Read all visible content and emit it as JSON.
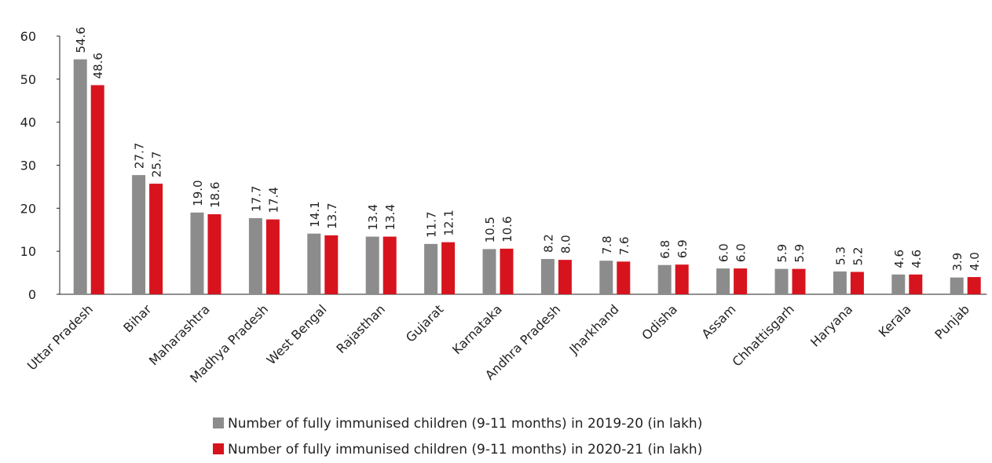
{
  "chart_data": {
    "type": "bar",
    "categories": [
      "Uttar Pradesh",
      "Bihar",
      "Maharashtra",
      "Madhya Pradesh",
      "West Bengal",
      "Rajasthan",
      "Gujarat",
      "Karnataka",
      "Andhra Pradesh",
      "Jharkhand",
      "Odisha",
      "Assam",
      "Chhattisgarh",
      "Haryana",
      "Kerala",
      "Punjab"
    ],
    "series": [
      {
        "name": "Number of fully immunised children (9-11 months) in 2019-20 (in lakh)",
        "color": "#8c8c8c",
        "values": [
          54.6,
          27.7,
          19.0,
          17.7,
          14.1,
          13.4,
          11.7,
          10.5,
          8.2,
          7.8,
          6.8,
          6.0,
          5.9,
          5.3,
          4.6,
          3.9
        ],
        "value_labels": [
          "54.6",
          "27.7",
          "19.0",
          "17.7",
          "14.1",
          "13.4",
          "11.7",
          "10.5",
          "8.2",
          "7.8",
          "6.8",
          "6.0",
          "5.9",
          "5.3",
          "4.6",
          "3.9"
        ]
      },
      {
        "name": "Number of fully immunised children (9-11 months) in 2020-21 (in lakh)",
        "color": "#d7141e",
        "values": [
          48.6,
          25.7,
          18.6,
          17.4,
          13.7,
          13.4,
          12.1,
          10.6,
          8.0,
          7.6,
          6.9,
          6.0,
          5.9,
          5.2,
          4.6,
          4.0
        ],
        "value_labels": [
          "48.6",
          "25.7",
          "18.6",
          "17.4",
          "13.7",
          "13.4",
          "12.1",
          "10.6",
          "8.0",
          "7.6",
          "6.9",
          "6.0",
          "5.9",
          "5.2",
          "4.6",
          "4.0"
        ]
      }
    ],
    "ylim": [
      0,
      60
    ],
    "yticks": [
      0,
      10,
      20,
      30,
      40,
      50,
      60
    ],
    "grid": false,
    "legend": "bottom"
  }
}
